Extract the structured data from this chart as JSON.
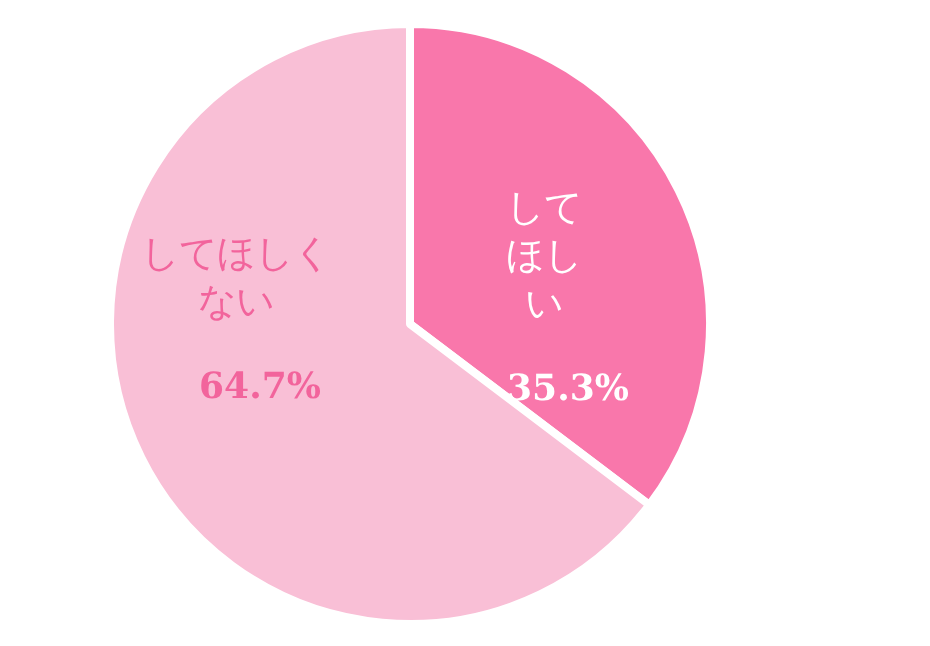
{
  "chart_data": {
    "type": "pie",
    "categories": [
      "してほしい",
      "してほしくない"
    ],
    "values": [
      35.3,
      64.7
    ],
    "value_labels": [
      "35.3%",
      "64.7%"
    ],
    "colors": [
      "#f977ab",
      "#f9bfd6"
    ]
  }
}
